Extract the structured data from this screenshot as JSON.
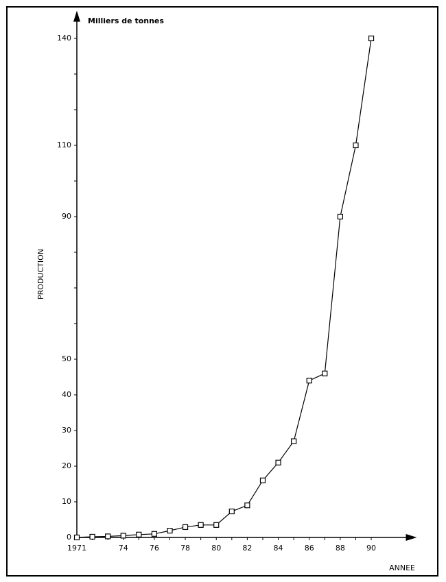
{
  "chart_data": {
    "type": "line",
    "y_label": "Milliers de tonnes",
    "y_title": "PRODUCTION",
    "x_label": "ANNEE",
    "x": [
      1971,
      1972,
      1973,
      1974,
      1975,
      1976,
      1977,
      1978,
      1979,
      1980,
      1981,
      1982,
      1983,
      1984,
      1985,
      1986,
      1987,
      1988,
      1989,
      1990
    ],
    "values": [
      0,
      0.2,
      0.3,
      0.5,
      0.8,
      1,
      1.9,
      2.9,
      3.5,
      3.5,
      7.3,
      9,
      16,
      21,
      27,
      44,
      46,
      90,
      110,
      140
    ],
    "color": "#000000",
    "xlim": [
      1971,
      1992.5
    ],
    "ylim": [
      0,
      147
    ],
    "xticks": [
      {
        "value": 1971,
        "label": "1971"
      },
      {
        "value": 1972,
        "label": null
      },
      {
        "value": 1973,
        "label": null
      },
      {
        "value": 1974,
        "label": "74"
      },
      {
        "value": 1975,
        "label": null
      },
      {
        "value": 1976,
        "label": "76"
      },
      {
        "value": 1977,
        "label": null
      },
      {
        "value": 1978,
        "label": "78"
      },
      {
        "value": 1979,
        "label": null
      },
      {
        "value": 1980,
        "label": "80"
      },
      {
        "value": 1981,
        "label": null
      },
      {
        "value": 1982,
        "label": "82"
      },
      {
        "value": 1983,
        "label": null
      },
      {
        "value": 1984,
        "label": "84"
      },
      {
        "value": 1985,
        "label": null
      },
      {
        "value": 1986,
        "label": "86"
      },
      {
        "value": 1987,
        "label": null
      },
      {
        "value": 1988,
        "label": "88"
      },
      {
        "value": 1989,
        "label": null
      },
      {
        "value": 1990,
        "label": "90"
      }
    ],
    "yticks": [
      0,
      10,
      20,
      30,
      40,
      50,
      {
        "value": 60,
        "label": null
      },
      {
        "value": 70,
        "label": null
      },
      {
        "value": 80,
        "label": null
      },
      90,
      {
        "value": 100,
        "label": null
      },
      110,
      {
        "value": 120,
        "label": null
      },
      {
        "value": 130,
        "label": null
      },
      140
    ]
  }
}
